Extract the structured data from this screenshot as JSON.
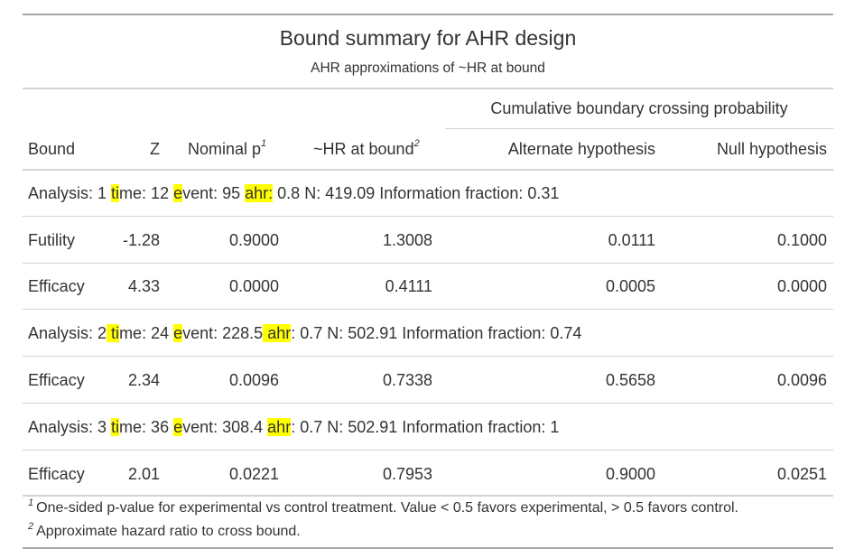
{
  "title": "Bound summary for AHR design",
  "subtitle": "AHR approximations of ~HR at bound",
  "spanner": "Cumulative boundary crossing probability",
  "columns": {
    "bound": "Bound",
    "z": "Z",
    "nominal_p": "Nominal p",
    "nominal_p_mark": "1",
    "hr": "~HR at bound",
    "hr_mark": "2",
    "alt": "Alternate hypothesis",
    "null": "Null hypothesis"
  },
  "groups": [
    {
      "label_parts": [
        "Analysis: 1 ",
        "ti",
        "me: 12 ",
        "e",
        "vent: 95 ",
        "ahr:",
        " 0.8 N: 419.09 Information fraction: 0.31"
      ],
      "rows": [
        {
          "bound": "Futility",
          "z": "-1.28",
          "p": "0.9000",
          "hr": "1.3008",
          "alt": "0.0111",
          "null": "0.1000"
        },
        {
          "bound": "Efficacy",
          "z": "4.33",
          "p": "0.0000",
          "hr": "0.4111",
          "alt": "0.0005",
          "null": "0.0000"
        }
      ]
    },
    {
      "label_parts": [
        "Analysis: 2",
        " ti",
        "me: 24 ",
        "e",
        "vent: 228.5",
        " ahr",
        ": 0.7 N: 502.91 Information fraction: 0.74"
      ],
      "rows": [
        {
          "bound": "Efficacy",
          "z": "2.34",
          "p": "0.0096",
          "hr": "0.7338",
          "alt": "0.5658",
          "null": "0.0096"
        }
      ]
    },
    {
      "label_parts": [
        "Analysis: 3 ",
        "ti",
        "me: 36 ",
        "e",
        "vent: 308.4 ",
        "ahr",
        ": 0.7 N: 502.91 Information fraction: 1"
      ],
      "rows": [
        {
          "bound": "Efficacy",
          "z": "2.01",
          "p": "0.0221",
          "hr": "0.7953",
          "alt": "0.9000",
          "null": "0.0251"
        }
      ]
    }
  ],
  "footnotes": [
    {
      "mark": "1",
      "text": "One-sided p-value for experimental vs control treatment. Value < 0.5 favors experimental, > 0.5 favors control."
    },
    {
      "mark": "2",
      "text": "Approximate hazard ratio to cross bound."
    }
  ],
  "colors": {
    "highlight": "#ffff00",
    "rule": "#d3d3d3",
    "text": "#333333"
  }
}
